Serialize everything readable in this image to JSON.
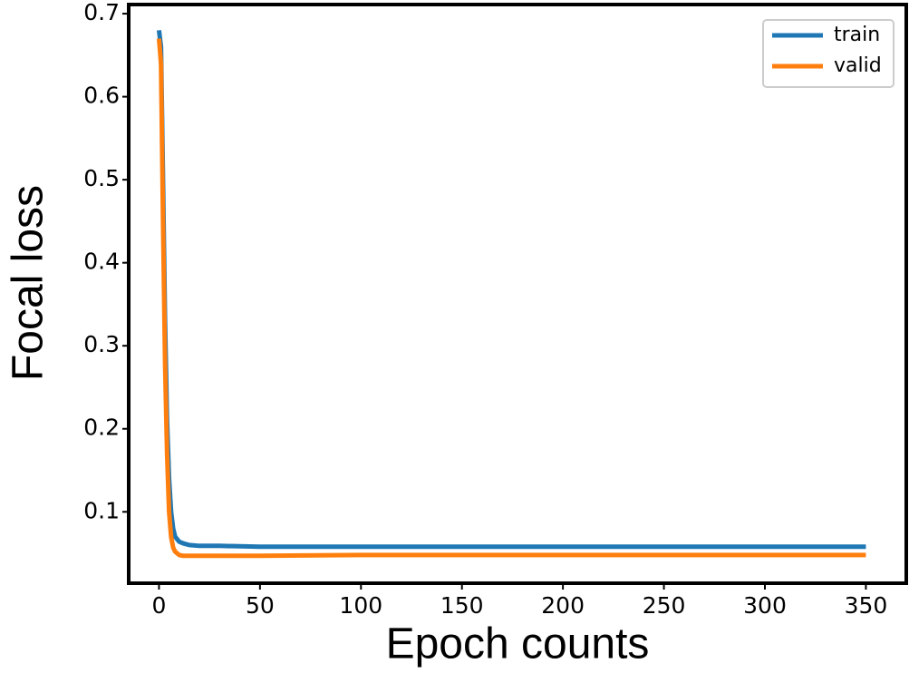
{
  "chart_data": {
    "type": "line",
    "x_label": "Epoch counts",
    "y_label": "Focal loss",
    "x": [
      0,
      1,
      2,
      3,
      4,
      5,
      6,
      7,
      8,
      10,
      12,
      15,
      20,
      30,
      50,
      100,
      150,
      200,
      250,
      300,
      350
    ],
    "series": [
      {
        "name": "train",
        "color": "#1f77b4",
        "values": [
          0.68,
          0.66,
          0.5,
          0.33,
          0.21,
          0.14,
          0.1,
          0.08,
          0.07,
          0.064,
          0.062,
          0.06,
          0.059,
          0.059,
          0.058,
          0.058,
          0.058,
          0.058,
          0.058,
          0.058,
          0.058
        ]
      },
      {
        "name": "valid",
        "color": "#ff7f0e",
        "values": [
          0.67,
          0.64,
          0.45,
          0.28,
          0.17,
          0.1,
          0.07,
          0.057,
          0.052,
          0.048,
          0.047,
          0.047,
          0.047,
          0.047,
          0.047,
          0.048,
          0.048,
          0.048,
          0.048,
          0.048,
          0.048
        ]
      }
    ],
    "xlim": [
      -15,
      370
    ],
    "ylim": [
      0.014,
      0.711
    ],
    "xticks": [
      0,
      50,
      100,
      150,
      200,
      250,
      300,
      350
    ],
    "yticks": [
      0.1,
      0.2,
      0.3,
      0.4,
      0.5,
      0.6,
      0.7
    ],
    "legend": "upper right"
  }
}
